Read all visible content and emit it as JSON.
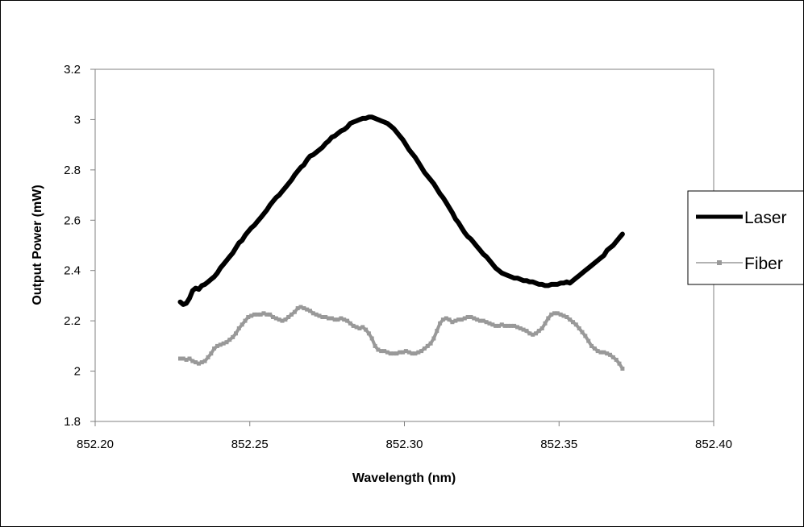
{
  "chart_data": {
    "type": "line",
    "title": "",
    "xlabel": "Wavelength (nm)",
    "ylabel": "Output Power (mW)",
    "xlim": [
      852.2,
      852.4
    ],
    "ylim": [
      1.8,
      3.2
    ],
    "x_ticks": [
      "852.20",
      "852.25",
      "852.30",
      "852.35",
      "852.40"
    ],
    "y_ticks": [
      "1.8",
      "2",
      "2.2",
      "2.4",
      "2.6",
      "2.8",
      "3",
      "3.2"
    ],
    "grid": false,
    "legend_position": "right",
    "series": [
      {
        "name": "Laser",
        "color": "#000000",
        "marker": "none",
        "x": [
          852.2275,
          852.2285,
          852.2295,
          852.2305,
          852.2315,
          852.2325,
          852.2335,
          852.2345,
          852.2355,
          852.2365,
          852.2375,
          852.2385,
          852.2395,
          852.2405,
          852.2415,
          852.2425,
          852.2435,
          852.2445,
          852.2455,
          852.2465,
          852.2475,
          852.2485,
          852.2495,
          852.2505,
          852.2515,
          852.2525,
          852.2535,
          852.2545,
          852.2555,
          852.2565,
          852.2575,
          852.2585,
          852.2595,
          852.2605,
          852.2615,
          852.2625,
          852.2635,
          852.2645,
          852.2655,
          852.2665,
          852.2675,
          852.2685,
          852.2695,
          852.2705,
          852.2715,
          852.2725,
          852.2735,
          852.2745,
          852.2755,
          852.2765,
          852.2775,
          852.2785,
          852.2795,
          852.2805,
          852.2815,
          852.2825,
          852.2835,
          852.2845,
          852.2855,
          852.2865,
          852.2875,
          852.2885,
          852.2895,
          852.2905,
          852.2915,
          852.2925,
          852.2935,
          852.2945,
          852.2955,
          852.2965,
          852.2975,
          852.2985,
          852.2995,
          852.3005,
          852.3015,
          852.3025,
          852.3035,
          852.3045,
          852.3055,
          852.3065,
          852.3075,
          852.3085,
          852.3095,
          852.3105,
          852.3115,
          852.3125,
          852.3135,
          852.3145,
          852.3155,
          852.3165,
          852.3175,
          852.3185,
          852.3195,
          852.3205,
          852.3215,
          852.3225,
          852.3235,
          852.3245,
          852.3255,
          852.3265,
          852.3275,
          852.3285,
          852.3295,
          852.3305,
          852.3315,
          852.3325,
          852.3335,
          852.3345,
          852.3355,
          852.3365,
          852.3375,
          852.3385,
          852.3395,
          852.3405,
          852.3415,
          852.3425,
          852.3435,
          852.3445,
          852.3455,
          852.3465,
          852.3475,
          852.3485,
          852.3495,
          852.3505,
          852.3515,
          852.3525,
          852.3535,
          852.3545,
          852.3555,
          852.3565,
          852.3575,
          852.3585,
          852.3595,
          852.3605,
          852.3615,
          852.3625,
          852.3635,
          852.3645,
          852.3655,
          852.3665,
          852.3675,
          852.3685,
          852.3695,
          852.3705
        ],
        "y": [
          2.275,
          2.265,
          2.27,
          2.29,
          2.32,
          2.33,
          2.325,
          2.34,
          2.345,
          2.355,
          2.365,
          2.375,
          2.39,
          2.41,
          2.425,
          2.44,
          2.455,
          2.47,
          2.49,
          2.51,
          2.52,
          2.54,
          2.555,
          2.57,
          2.58,
          2.595,
          2.61,
          2.625,
          2.64,
          2.66,
          2.675,
          2.69,
          2.7,
          2.715,
          2.73,
          2.745,
          2.76,
          2.78,
          2.795,
          2.81,
          2.82,
          2.84,
          2.855,
          2.86,
          2.87,
          2.88,
          2.89,
          2.905,
          2.915,
          2.93,
          2.935,
          2.945,
          2.955,
          2.96,
          2.97,
          2.985,
          2.99,
          2.995,
          3.0,
          3.005,
          3.005,
          3.01,
          3.01,
          3.005,
          3.0,
          2.995,
          2.99,
          2.985,
          2.975,
          2.965,
          2.95,
          2.935,
          2.92,
          2.9,
          2.88,
          2.865,
          2.85,
          2.83,
          2.81,
          2.79,
          2.775,
          2.76,
          2.745,
          2.725,
          2.705,
          2.69,
          2.67,
          2.65,
          2.63,
          2.605,
          2.59,
          2.57,
          2.55,
          2.535,
          2.525,
          2.51,
          2.495,
          2.48,
          2.465,
          2.455,
          2.44,
          2.425,
          2.41,
          2.4,
          2.39,
          2.385,
          2.38,
          2.375,
          2.37,
          2.37,
          2.365,
          2.36,
          2.36,
          2.355,
          2.355,
          2.35,
          2.345,
          2.345,
          2.34,
          2.34,
          2.345,
          2.345,
          2.345,
          2.35,
          2.35,
          2.355,
          2.35,
          2.36,
          2.37,
          2.38,
          2.39,
          2.4,
          2.41,
          2.42,
          2.43,
          2.44,
          2.45,
          2.46,
          2.48,
          2.49,
          2.5,
          2.515,
          2.53,
          2.545
        ]
      },
      {
        "name": "Fiber",
        "color": "#999999",
        "marker": "square",
        "x": [
          852.2275,
          852.2285,
          852.2295,
          852.2305,
          852.2315,
          852.2325,
          852.2335,
          852.2345,
          852.2355,
          852.2365,
          852.2375,
          852.2385,
          852.2395,
          852.2405,
          852.2415,
          852.2425,
          852.2435,
          852.2445,
          852.2455,
          852.2465,
          852.2475,
          852.2485,
          852.2495,
          852.2505,
          852.2515,
          852.2525,
          852.2535,
          852.2545,
          852.2555,
          852.2565,
          852.2575,
          852.2585,
          852.2595,
          852.2605,
          852.2615,
          852.2625,
          852.2635,
          852.2645,
          852.2655,
          852.2665,
          852.2675,
          852.2685,
          852.2695,
          852.2705,
          852.2715,
          852.2725,
          852.2735,
          852.2745,
          852.2755,
          852.2765,
          852.2775,
          852.2785,
          852.2795,
          852.2805,
          852.2815,
          852.2825,
          852.2835,
          852.2845,
          852.2855,
          852.2865,
          852.2875,
          852.2885,
          852.2895,
          852.2905,
          852.2915,
          852.2925,
          852.2935,
          852.2945,
          852.2955,
          852.2965,
          852.2975,
          852.2985,
          852.2995,
          852.3005,
          852.3015,
          852.3025,
          852.3035,
          852.3045,
          852.3055,
          852.3065,
          852.3075,
          852.3085,
          852.3095,
          852.3105,
          852.3115,
          852.3125,
          852.3135,
          852.3145,
          852.3155,
          852.3165,
          852.3175,
          852.3185,
          852.3195,
          852.3205,
          852.3215,
          852.3225,
          852.3235,
          852.3245,
          852.3255,
          852.3265,
          852.3275,
          852.3285,
          852.3295,
          852.3305,
          852.3315,
          852.3325,
          852.3335,
          852.3345,
          852.3355,
          852.3365,
          852.3375,
          852.3385,
          852.3395,
          852.3405,
          852.3415,
          852.3425,
          852.3435,
          852.3445,
          852.3455,
          852.3465,
          852.3475,
          852.3485,
          852.3495,
          852.3505,
          852.3515,
          852.3525,
          852.3535,
          852.3545,
          852.3555,
          852.3565,
          852.3575,
          852.3585,
          852.3595,
          852.3605,
          852.3615,
          852.3625,
          852.3635,
          852.3645,
          852.3655,
          852.3665,
          852.3675,
          852.3685,
          852.3695,
          852.3705
        ],
        "y": [
          2.05,
          2.05,
          2.045,
          2.05,
          2.04,
          2.035,
          2.03,
          2.035,
          2.04,
          2.055,
          2.07,
          2.09,
          2.1,
          2.105,
          2.11,
          2.115,
          2.125,
          2.135,
          2.15,
          2.17,
          2.185,
          2.2,
          2.215,
          2.22,
          2.225,
          2.225,
          2.225,
          2.23,
          2.225,
          2.225,
          2.215,
          2.21,
          2.205,
          2.2,
          2.205,
          2.215,
          2.225,
          2.235,
          2.25,
          2.255,
          2.25,
          2.245,
          2.24,
          2.23,
          2.225,
          2.22,
          2.215,
          2.215,
          2.21,
          2.21,
          2.205,
          2.205,
          2.21,
          2.205,
          2.2,
          2.19,
          2.18,
          2.175,
          2.17,
          2.175,
          2.165,
          2.15,
          2.13,
          2.1,
          2.085,
          2.08,
          2.08,
          2.075,
          2.07,
          2.07,
          2.07,
          2.075,
          2.075,
          2.08,
          2.075,
          2.07,
          2.07,
          2.075,
          2.08,
          2.09,
          2.1,
          2.11,
          2.13,
          2.16,
          2.19,
          2.205,
          2.21,
          2.205,
          2.195,
          2.2,
          2.205,
          2.205,
          2.21,
          2.215,
          2.215,
          2.21,
          2.205,
          2.2,
          2.2,
          2.195,
          2.19,
          2.185,
          2.18,
          2.18,
          2.185,
          2.18,
          2.18,
          2.18,
          2.18,
          2.175,
          2.17,
          2.165,
          2.16,
          2.15,
          2.145,
          2.15,
          2.16,
          2.17,
          2.19,
          2.21,
          2.225,
          2.23,
          2.23,
          2.225,
          2.22,
          2.215,
          2.205,
          2.195,
          2.185,
          2.17,
          2.155,
          2.14,
          2.12,
          2.1,
          2.09,
          2.08,
          2.075,
          2.075,
          2.07,
          2.065,
          2.055,
          2.045,
          2.03,
          2.01
        ]
      }
    ]
  }
}
